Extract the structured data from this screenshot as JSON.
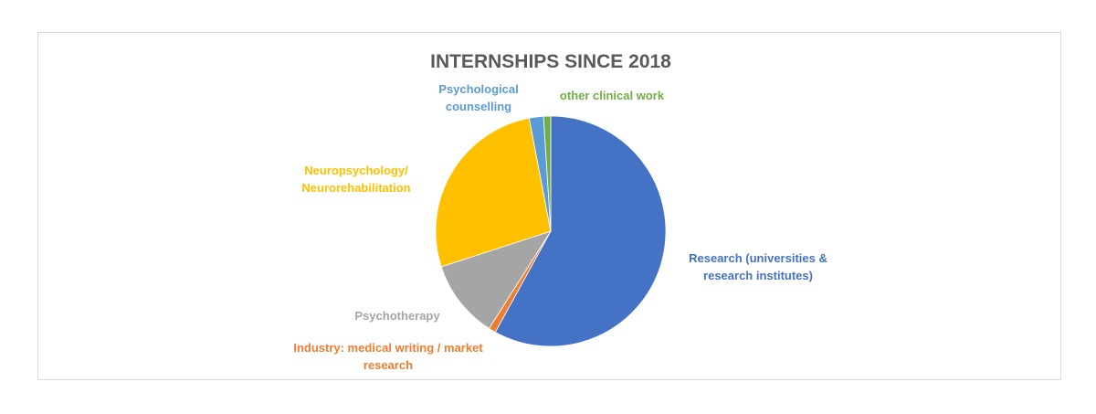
{
  "chart_data": {
    "type": "pie",
    "title": "INTERNSHIPS SINCE 2018",
    "categories": [
      "Research (universities & research institutes)",
      "Industry: medical writing / market research",
      "Psychotherapy",
      "Neuropsychology/ Neurorehabilitation",
      "Psychological counselling",
      "other clinical  work"
    ],
    "values": [
      58,
      1,
      11,
      27,
      2,
      1
    ],
    "colors": [
      "#4472c4",
      "#ed7d31",
      "#a5a5a5",
      "#ffc000",
      "#5b9bd5",
      "#70ad47"
    ]
  }
}
